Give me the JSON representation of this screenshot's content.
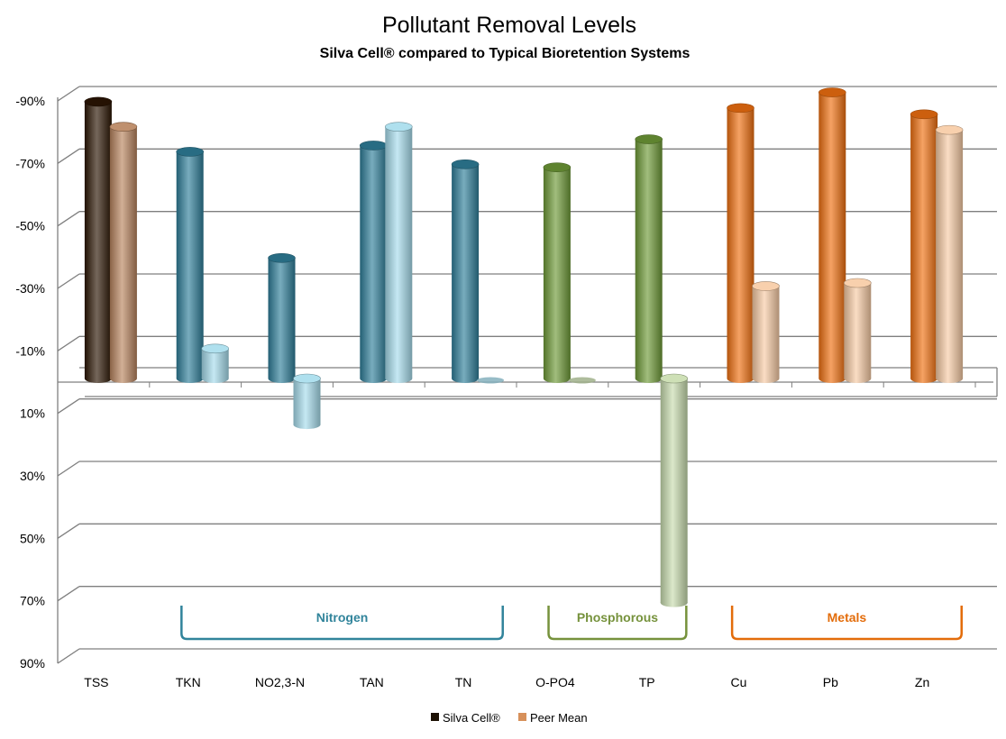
{
  "chart_data": {
    "type": "bar",
    "title": "Pollutant Removal Levels",
    "subtitle": "Silva Cell® compared to Typical Bioretention Systems",
    "xlabel": "",
    "ylabel": "",
    "categories": [
      "TSS",
      "TKN",
      "NO2,3-N",
      "TAN",
      "TN",
      "O-PO4",
      "TP",
      "Cu",
      "Pb",
      "Zn"
    ],
    "series": [
      {
        "name": "Silva Cell®",
        "values": [
          -88,
          -72,
          -38,
          -74,
          -68,
          -67,
          -76,
          -86,
          -91,
          -84
        ]
      },
      {
        "name": "Peer Mean",
        "values": [
          -80,
          -9,
          13,
          -80,
          0,
          0,
          70,
          -29,
          -30,
          -79
        ]
      }
    ],
    "ylim": [
      -90,
      90
    ],
    "yticks": [
      "-90%",
      "-70%",
      "-50%",
      "-30%",
      "-10%",
      "10%",
      "30%",
      "50%",
      "70%",
      "90%"
    ],
    "grid": true,
    "legend_position": "bottom",
    "groups": [
      {
        "label": "Nitrogen",
        "from": 1,
        "to": 4,
        "color": "#31849b"
      },
      {
        "label": "Phosphorous",
        "from": 5,
        "to": 6,
        "color": "#76923c"
      },
      {
        "label": "Metals",
        "from": 7,
        "to": 9,
        "color": "#e36c0a"
      }
    ],
    "colors": {
      "TSS": [
        "#2b1503",
        "#b8845e"
      ],
      "Nitrogen": [
        "#2f7f9a",
        "#a6dcec"
      ],
      "Phosphorous": [
        "#6e9a37",
        "#c8dcae"
      ],
      "Metals": [
        "#f07010",
        "#f7cba4"
      ]
    },
    "legend_swatches": [
      "#1c1003",
      "#d7905a"
    ]
  }
}
